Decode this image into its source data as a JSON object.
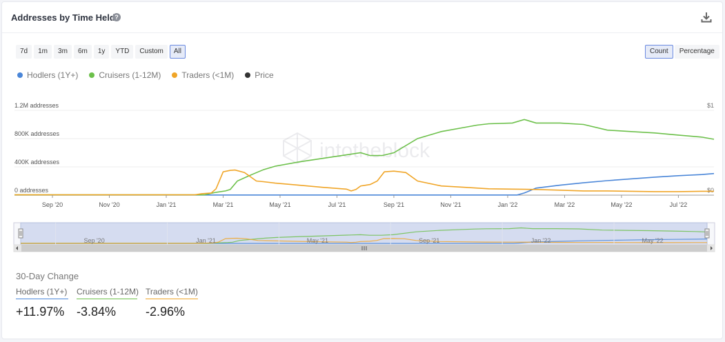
{
  "header": {
    "title": "Addresses by Time Held",
    "help_glyph": "?"
  },
  "ranges": [
    "7d",
    "1m",
    "3m",
    "6m",
    "1y",
    "YTD",
    "Custom",
    "All"
  ],
  "active_range": "All",
  "modes": [
    "Count",
    "Percentage"
  ],
  "active_mode": "Count",
  "legend": [
    {
      "name": "Hodlers (1Y+)",
      "color": "#4a86d8"
    },
    {
      "name": "Cruisers (1-12M)",
      "color": "#6cc04a"
    },
    {
      "name": "Traders (<1M)",
      "color": "#f0a527"
    },
    {
      "name": "Price",
      "color": "#333333"
    }
  ],
  "watermark": "intotheblock",
  "chart_data": {
    "type": "line",
    "y_ticks": [
      "1.2M addresses",
      "800K addresses",
      "400K addresses",
      "0 addresses"
    ],
    "y_values": [
      1200000,
      800000,
      400000,
      0
    ],
    "right_ticks": [
      "$1",
      "$0"
    ],
    "x_ticks": [
      "Sep '20",
      "Nov '20",
      "Jan '21",
      "Mar '21",
      "May '21",
      "Jul '21",
      "Sep '21",
      "Nov '21",
      "Jan '22",
      "Mar '22",
      "May '22",
      "Jul '22"
    ],
    "ylim": [
      0,
      1200000
    ],
    "series": [
      {
        "name": "Hodlers (1Y+)",
        "color": "#4a86d8",
        "x": [
          0,
          21.2,
          21.5,
          22.0,
          23.0,
          24.0,
          25.0,
          26.0,
          27.0,
          28.0,
          29.0,
          29.5
        ],
        "values": [
          2000,
          2000,
          30000,
          100000,
          140000,
          175000,
          205000,
          230000,
          255000,
          275000,
          292000,
          305000
        ]
      },
      {
        "name": "Cruisers (1-12M)",
        "color": "#6cc04a",
        "x": [
          0,
          8.0,
          8.5,
          8.9,
          9.1,
          9.4,
          10.0,
          10.5,
          11.0,
          12.0,
          13.0,
          14.0,
          14.6,
          15.0,
          15.5,
          16.0,
          17.0,
          18.0,
          19.0,
          19.5,
          20.0,
          21.0,
          21.5,
          22.0,
          23.0,
          24.0,
          25.0,
          26.0,
          27.0,
          28.0,
          29.0,
          29.5
        ],
        "values": [
          4000,
          4000,
          40000,
          60000,
          80000,
          200000,
          290000,
          360000,
          410000,
          470000,
          520000,
          570000,
          600000,
          560000,
          560000,
          600000,
          800000,
          900000,
          960000,
          990000,
          1010000,
          1020000,
          1070000,
          1020000,
          1020000,
          1000000,
          920000,
          900000,
          880000,
          850000,
          820000,
          790000
        ]
      },
      {
        "name": "Traders (<1M)",
        "color": "#f0a527",
        "x": [
          0,
          7.6,
          7.9,
          8.3,
          8.5,
          8.8,
          9.1,
          9.3,
          9.7,
          10.2,
          10.5,
          11.0,
          12.0,
          13.0,
          14.0,
          14.2,
          14.4,
          14.6,
          15.0,
          15.3,
          15.6,
          16.0,
          16.5,
          17.0,
          18.0,
          19.0,
          20.0,
          21.0,
          22.0,
          23.0,
          24.0,
          25.0,
          26.0,
          27.0,
          28.0,
          29.0,
          29.5
        ],
        "values": [
          4000,
          4000,
          20000,
          30000,
          90000,
          330000,
          350000,
          355000,
          320000,
          200000,
          190000,
          170000,
          140000,
          110000,
          85000,
          60000,
          80000,
          130000,
          150000,
          200000,
          330000,
          340000,
          320000,
          200000,
          130000,
          110000,
          90000,
          85000,
          80000,
          70000,
          60000,
          60000,
          55000,
          50000,
          50000,
          55000,
          55000
        ]
      }
    ],
    "xlim": [
      0,
      29.5
    ],
    "navigator": {
      "x_ticks": [
        "Sep '20",
        "Jan '21",
        "May '21",
        "Sep '21",
        "Jan '22",
        "May '22"
      ]
    },
    "grid": true
  },
  "change": {
    "title": "30-Day Change",
    "items": [
      {
        "name": "Hodlers (1Y+)",
        "value": "+11.97%",
        "color": "#4a86d8"
      },
      {
        "name": "Cruisers (1-12M)",
        "value": "-3.84%",
        "color": "#6cc04a"
      },
      {
        "name": "Traders (<1M)",
        "value": "-2.96%",
        "color": "#f0a527"
      }
    ]
  }
}
